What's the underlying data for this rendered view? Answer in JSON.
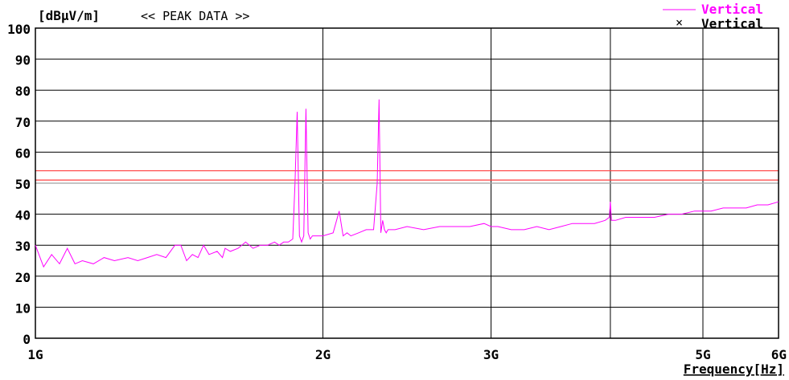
{
  "chart_data": {
    "type": "line",
    "unit_label": "[dBμV/m]",
    "header": "<< PEAK DATA >>",
    "xlabel": "Frequency[Hz]",
    "x_scale": "log",
    "xlim": [
      1,
      6
    ],
    "ylim": [
      0,
      100
    ],
    "y_ticks": [
      0,
      10,
      20,
      30,
      40,
      50,
      60,
      70,
      80,
      90,
      100
    ],
    "y_tick_labels": [
      "0",
      "10",
      "20",
      "30",
      "40",
      "50",
      "60",
      "70",
      "80",
      "90",
      "100"
    ],
    "x_ticks": [
      1,
      2,
      3,
      5,
      6
    ],
    "x_tick_labels": [
      "1G",
      "2G",
      "3G",
      "5G",
      "6G"
    ],
    "x_gridlines": [
      2,
      3,
      4,
      5
    ],
    "grid": true,
    "legend_placement": "top-right",
    "legend": [
      {
        "label": "Vertical",
        "marker": "line",
        "color": "#ff00ff"
      },
      {
        "label": "Vertical",
        "marker": "×",
        "color": "#000000"
      }
    ],
    "limit_lines": [
      {
        "value": 54,
        "color": "#ff4040"
      },
      {
        "value": 51,
        "color": "#ff4040"
      },
      {
        "value": 50,
        "color": "#a0a0a0"
      }
    ],
    "series": [
      {
        "color": "#ff00ff",
        "x": [
          1.0,
          1.02,
          1.04,
          1.06,
          1.08,
          1.1,
          1.12,
          1.15,
          1.18,
          1.21,
          1.25,
          1.28,
          1.31,
          1.34,
          1.37,
          1.4,
          1.42,
          1.44,
          1.46,
          1.48,
          1.5,
          1.52,
          1.55,
          1.57,
          1.58,
          1.6,
          1.63,
          1.66,
          1.69,
          1.72,
          1.75,
          1.78,
          1.8,
          1.82,
          1.84,
          1.86,
          1.87,
          1.88,
          1.89,
          1.9,
          1.91,
          1.92,
          1.93,
          1.94,
          1.95,
          1.96,
          1.97,
          2.0,
          2.05,
          2.08,
          2.1,
          2.12,
          2.14,
          2.18,
          2.22,
          2.26,
          2.28,
          2.29,
          2.3,
          2.31,
          2.32,
          2.33,
          2.34,
          2.38,
          2.45,
          2.55,
          2.65,
          2.75,
          2.85,
          2.95,
          3.0,
          3.05,
          3.15,
          3.25,
          3.35,
          3.45,
          3.55,
          3.65,
          3.75,
          3.85,
          3.95,
          3.99,
          4.0,
          4.01,
          4.05,
          4.15,
          4.3,
          4.45,
          4.6,
          4.75,
          4.9,
          5.0,
          5.1,
          5.25,
          5.4,
          5.55,
          5.7,
          5.85,
          6.0
        ],
        "y": [
          30,
          23,
          27,
          24,
          29,
          24,
          25,
          24,
          26,
          25,
          26,
          25,
          26,
          27,
          26,
          30,
          30,
          25,
          27,
          26,
          30,
          27,
          28,
          26,
          29,
          28,
          29,
          31,
          29,
          30,
          30,
          31,
          30,
          31,
          31,
          32,
          50,
          73,
          33,
          31,
          33,
          74,
          34,
          32,
          33,
          33,
          33,
          33,
          34,
          41,
          33,
          34,
          33,
          34,
          35,
          35,
          50,
          77,
          34,
          38,
          35,
          34,
          35,
          35,
          36,
          35,
          36,
          36,
          36,
          37,
          36,
          36,
          35,
          35,
          36,
          35,
          36,
          37,
          37,
          37,
          38,
          39,
          44,
          38,
          38,
          39,
          39,
          39,
          40,
          40,
          41,
          41,
          41,
          42,
          42,
          42,
          43,
          43,
          44
        ]
      }
    ]
  }
}
